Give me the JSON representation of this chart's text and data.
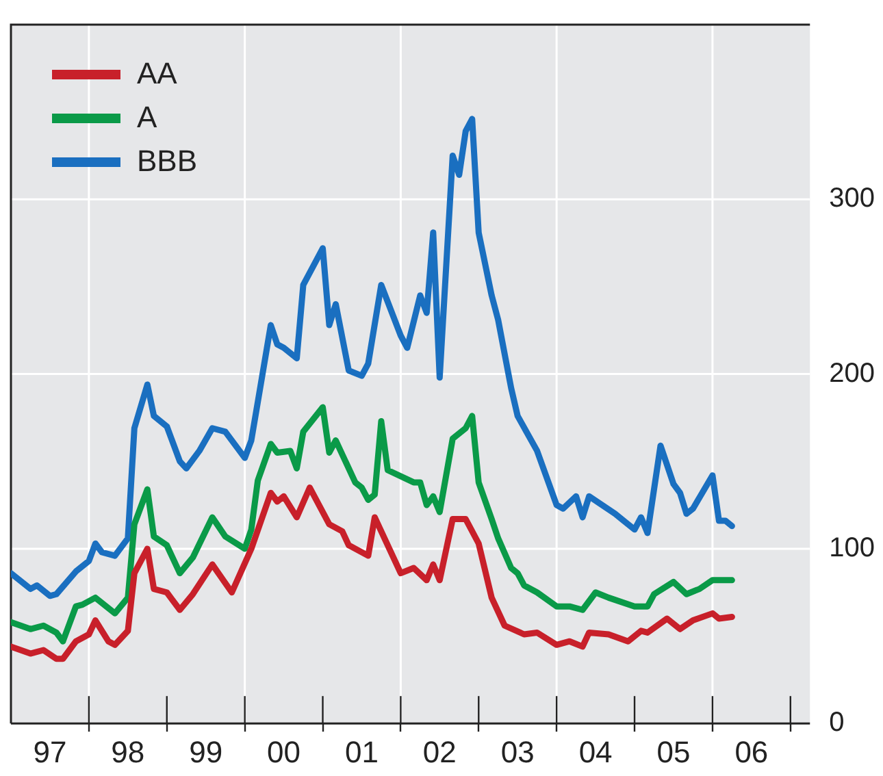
{
  "chart_data": {
    "type": "line",
    "xlim": [
      "1997-01",
      "2007-04"
    ],
    "xticks": [
      {
        "value": "1997-07",
        "label": "97"
      },
      {
        "value": "1998-01",
        "label": null
      },
      {
        "value": "1998-07",
        "label": "98"
      },
      {
        "value": "1999-01",
        "label": null
      },
      {
        "value": "1999-07",
        "label": "99"
      },
      {
        "value": "2000-01",
        "label": null
      },
      {
        "value": "2000-07",
        "label": "00"
      },
      {
        "value": "2001-01",
        "label": null
      },
      {
        "value": "2001-07",
        "label": "01"
      },
      {
        "value": "2002-01",
        "label": null
      },
      {
        "value": "2002-07",
        "label": "02"
      },
      {
        "value": "2003-01",
        "label": null
      },
      {
        "value": "2003-07",
        "label": "03"
      },
      {
        "value": "2004-01",
        "label": null
      },
      {
        "value": "2004-07",
        "label": "04"
      },
      {
        "value": "2005-01",
        "label": null
      },
      {
        "value": "2005-07",
        "label": "05"
      },
      {
        "value": "2006-01",
        "label": null
      },
      {
        "value": "2006-07",
        "label": "06"
      },
      {
        "value": "2007-01",
        "label": null
      }
    ],
    "ylim": [
      0,
      400
    ],
    "yticks": [
      0,
      100,
      200,
      300
    ],
    "grid": true,
    "legend": "top left",
    "marker": "none",
    "line_style": "solid",
    "series": [
      {
        "name": "AA",
        "color": "#c8202a",
        "x": [
          "1997-01",
          "1997-04",
          "1997-06",
          "1997-08",
          "1997-09",
          "1997-11",
          "1998-01",
          "1998-02",
          "1998-04",
          "1998-05",
          "1998-07",
          "1998-08",
          "1998-10",
          "1998-11",
          "1999-01",
          "1999-03",
          "1999-05",
          "1999-08",
          "1999-11",
          "2000-02",
          "2000-05",
          "2000-06",
          "2000-07",
          "2000-09",
          "2000-11",
          "2001-02",
          "2001-04",
          "2001-05",
          "2001-08",
          "2001-09",
          "2002-01",
          "2002-03",
          "2002-05",
          "2002-06",
          "2002-07",
          "2002-09",
          "2002-11",
          "2003-01",
          "2003-03",
          "2003-05",
          "2003-08",
          "2003-10",
          "2004-01",
          "2004-03",
          "2004-05",
          "2004-06",
          "2004-09",
          "2004-12",
          "2005-02",
          "2005-03",
          "2005-06",
          "2005-08",
          "2005-10",
          "2006-01",
          "2006-02",
          "2006-04"
        ],
        "values": [
          44,
          40,
          42,
          37,
          37,
          47,
          51,
          59,
          47,
          45,
          53,
          86,
          100,
          77,
          75,
          65,
          74,
          91,
          75,
          100,
          132,
          127,
          130,
          118,
          135,
          114,
          110,
          102,
          96,
          118,
          86,
          89,
          82,
          91,
          82,
          117,
          117,
          103,
          72,
          56,
          51,
          52,
          45,
          47,
          44,
          52,
          51,
          47,
          53,
          52,
          60,
          54,
          59,
          63,
          60,
          61
        ]
      },
      {
        "name": "A",
        "color": "#0a9a48",
        "x": [
          "1997-01",
          "1997-04",
          "1997-06",
          "1997-08",
          "1997-09",
          "1997-11",
          "1997-12",
          "1998-02",
          "1998-05",
          "1998-07",
          "1998-08",
          "1998-10",
          "1998-11",
          "1999-01",
          "1999-03",
          "1999-05",
          "1999-08",
          "1999-10",
          "2000-01",
          "2000-02",
          "2000-03",
          "2000-05",
          "2000-06",
          "2000-08",
          "2000-09",
          "2000-10",
          "2001-01",
          "2001-02",
          "2001-03",
          "2001-06",
          "2001-07",
          "2001-08",
          "2001-09",
          "2001-10",
          "2001-11",
          "2002-03",
          "2002-04",
          "2002-05",
          "2002-06",
          "2002-07",
          "2002-09",
          "2002-11",
          "2002-12",
          "2003-01",
          "2003-03",
          "2003-04",
          "2003-06",
          "2003-07",
          "2003-08",
          "2003-10",
          "2004-01",
          "2004-03",
          "2004-05",
          "2004-07",
          "2004-09",
          "2005-01",
          "2005-03",
          "2005-04",
          "2005-07",
          "2005-09",
          "2005-11",
          "2006-01",
          "2006-04"
        ],
        "values": [
          58,
          54,
          56,
          52,
          47,
          67,
          68,
          72,
          63,
          72,
          114,
          134,
          107,
          102,
          86,
          95,
          118,
          107,
          100,
          111,
          139,
          160,
          155,
          156,
          146,
          167,
          181,
          155,
          162,
          138,
          135,
          128,
          131,
          173,
          145,
          138,
          138,
          125,
          130,
          121,
          163,
          169,
          176,
          138,
          117,
          106,
          89,
          86,
          79,
          75,
          67,
          67,
          65,
          75,
          72,
          67,
          67,
          74,
          81,
          74,
          77,
          82,
          82
        ]
      },
      {
        "name": "BBB",
        "color": "#1a6fc0",
        "x": [
          "1997-01",
          "1997-04",
          "1997-05",
          "1997-07",
          "1997-08",
          "1997-11",
          "1998-01",
          "1998-02",
          "1998-03",
          "1998-05",
          "1998-07",
          "1998-08",
          "1998-10",
          "1998-11",
          "1999-01",
          "1999-03",
          "1999-04",
          "1999-06",
          "1999-08",
          "1999-10",
          "2000-01",
          "2000-02",
          "2000-03",
          "2000-05",
          "2000-06",
          "2000-07",
          "2000-09",
          "2000-10",
          "2001-01",
          "2001-02",
          "2001-03",
          "2001-05",
          "2001-07",
          "2001-08",
          "2001-10",
          "2002-01",
          "2002-02",
          "2002-04",
          "2002-05",
          "2002-06",
          "2002-07",
          "2002-09",
          "2002-10",
          "2002-11",
          "2002-12",
          "2003-01",
          "2003-03",
          "2003-04",
          "2003-06",
          "2003-07",
          "2003-10",
          "2004-01",
          "2004-02",
          "2004-04",
          "2004-05",
          "2004-06",
          "2004-08",
          "2004-10",
          "2005-01",
          "2005-02",
          "2005-03",
          "2005-05",
          "2005-07",
          "2005-08",
          "2005-09",
          "2005-10",
          "2006-01",
          "2006-02",
          "2006-03",
          "2006-04"
        ],
        "values": [
          86,
          77,
          79,
          73,
          74,
          87,
          93,
          103,
          98,
          96,
          106,
          169,
          194,
          176,
          170,
          150,
          146,
          156,
          169,
          167,
          152,
          162,
          184,
          228,
          217,
          215,
          209,
          251,
          272,
          228,
          240,
          202,
          199,
          206,
          251,
          222,
          215,
          245,
          235,
          281,
          198,
          325,
          314,
          339,
          346,
          281,
          245,
          231,
          192,
          176,
          156,
          125,
          123,
          130,
          118,
          130,
          125,
          120,
          111,
          118,
          109,
          159,
          137,
          132,
          120,
          123,
          142,
          116,
          116,
          113
        ]
      }
    ]
  }
}
